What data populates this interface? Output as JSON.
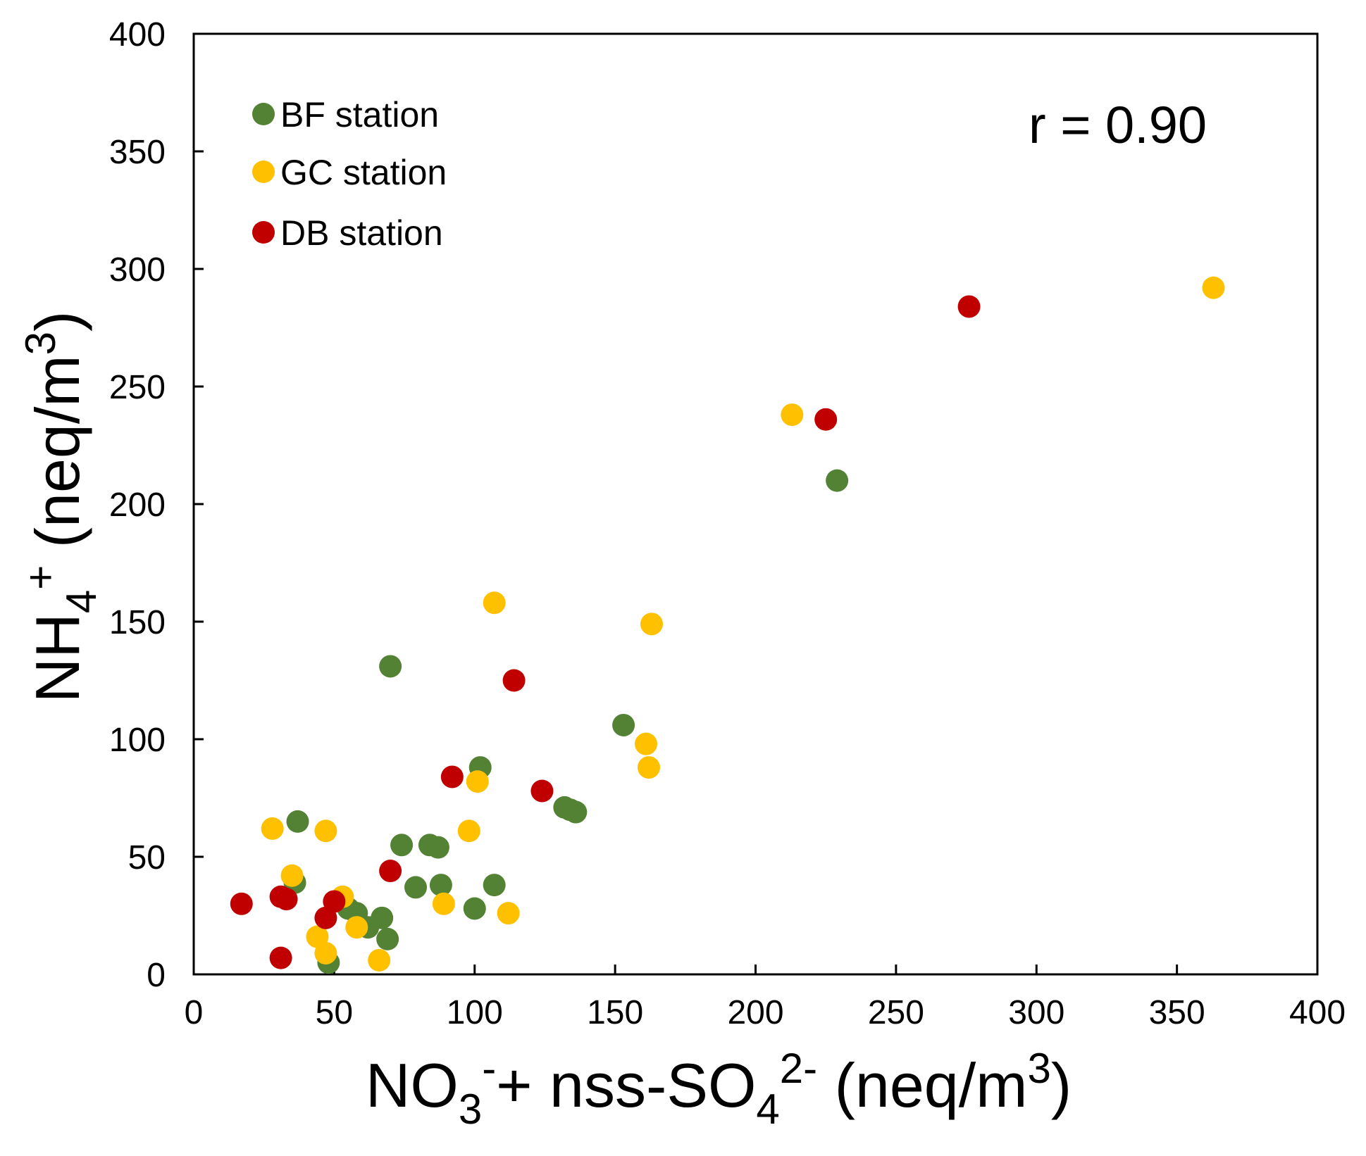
{
  "chart_data": {
    "type": "scatter",
    "xlim": [
      0,
      400
    ],
    "ylim": [
      0,
      400
    ],
    "xticks": [
      "0",
      "50",
      "100",
      "150",
      "200",
      "250",
      "300",
      "350",
      "400"
    ],
    "yticks": [
      "0",
      "50",
      "100",
      "150",
      "200",
      "250",
      "300",
      "350",
      "400"
    ],
    "xlabel": {
      "main": "NO",
      "sub1": "3",
      "sup1": "-",
      "mid": "+ nss-SO",
      "sub2": "4",
      "sup2": "2-",
      "end": " (neq/m",
      "sup3": "3",
      "close": ")"
    },
    "ylabel": {
      "main": "NH",
      "sub": "4",
      "sup": "+",
      "end": " (neq/m",
      "sup2": "3",
      "close": ")"
    },
    "annotation": "r = 0.90",
    "legend_position": "top-left",
    "series": [
      {
        "name": "BF station",
        "color": "#548235",
        "points": [
          [
            229,
            210
          ],
          [
            153,
            106
          ],
          [
            70,
            131
          ],
          [
            102,
            88
          ],
          [
            37,
            65
          ],
          [
            132,
            71
          ],
          [
            134,
            70
          ],
          [
            136,
            69
          ],
          [
            74,
            55
          ],
          [
            84,
            55
          ],
          [
            87,
            54
          ],
          [
            79,
            37
          ],
          [
            88,
            38
          ],
          [
            107,
            38
          ],
          [
            100,
            28
          ],
          [
            36,
            39
          ],
          [
            55,
            28
          ],
          [
            58,
            26
          ],
          [
            62,
            20
          ],
          [
            67,
            24
          ],
          [
            69,
            15
          ],
          [
            48,
            5
          ]
        ]
      },
      {
        "name": "GC station",
        "color": "#FFC000",
        "points": [
          [
            363,
            292
          ],
          [
            213,
            238
          ],
          [
            107,
            158
          ],
          [
            163,
            149
          ],
          [
            161,
            98
          ],
          [
            162,
            88
          ],
          [
            101,
            82
          ],
          [
            98,
            61
          ],
          [
            28,
            62
          ],
          [
            47,
            61
          ],
          [
            35,
            42
          ],
          [
            53,
            33
          ],
          [
            89,
            30
          ],
          [
            112,
            26
          ],
          [
            58,
            20
          ],
          [
            44,
            16
          ],
          [
            47,
            9
          ],
          [
            66,
            6
          ]
        ]
      },
      {
        "name": "DB station",
        "color": "#C00000",
        "points": [
          [
            276,
            284
          ],
          [
            225,
            236
          ],
          [
            114,
            125
          ],
          [
            92,
            84
          ],
          [
            124,
            78
          ],
          [
            70,
            44
          ],
          [
            17,
            30
          ],
          [
            31,
            33
          ],
          [
            33,
            32
          ],
          [
            50,
            31
          ],
          [
            47,
            24
          ],
          [
            31,
            7
          ]
        ]
      }
    ]
  }
}
